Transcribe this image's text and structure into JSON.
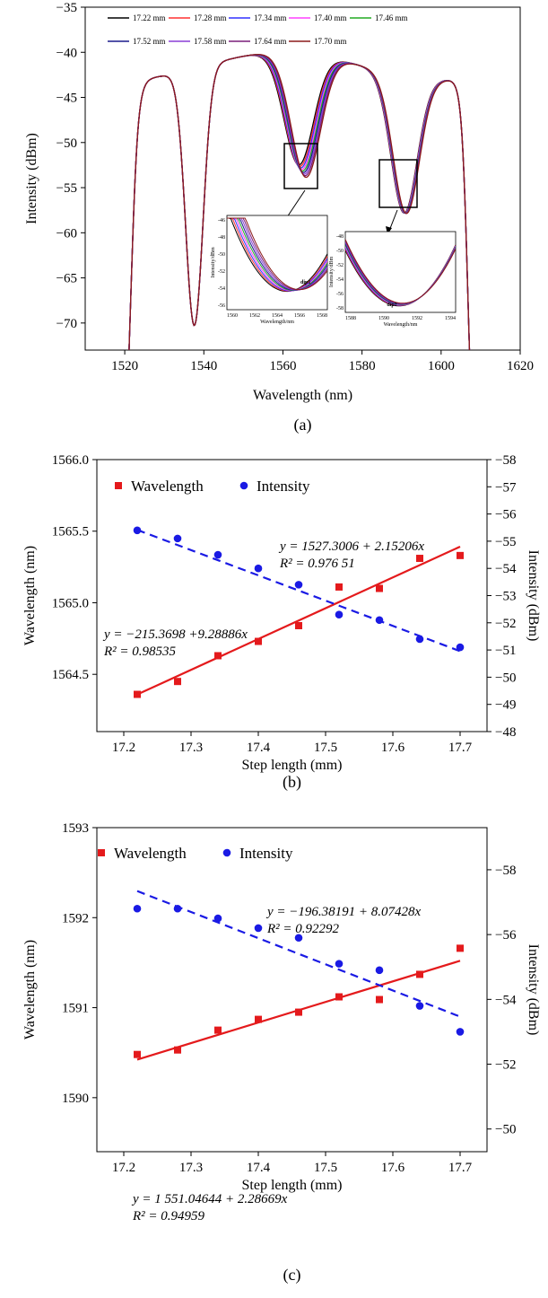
{
  "chart_data": [
    {
      "type": "line",
      "panel_label": "(a)",
      "xlabel": "Wavelength (nm)",
      "ylabel": "Intensity (dBm)",
      "xlim": [
        1510,
        1620
      ],
      "ylim": [
        -73,
        -35
      ],
      "xticks": [
        "1520",
        "1540",
        "1560",
        "1580",
        "1600",
        "1620"
      ],
      "yticks": [
        "−35",
        "−40",
        "−45",
        "−50",
        "−55",
        "−60",
        "−65",
        "−70"
      ],
      "legend_position": "top",
      "series": [
        {
          "name": "17.22 mm",
          "color": "#000000"
        },
        {
          "name": "17.28 mm",
          "color": "#ff3030"
        },
        {
          "name": "17.34 mm",
          "color": "#3030ff"
        },
        {
          "name": "17.40 mm",
          "color": "#ff40ff"
        },
        {
          "name": "17.46 mm",
          "color": "#22aa22"
        },
        {
          "name": "17.52 mm",
          "color": "#1a1a8c"
        },
        {
          "name": "17.58 mm",
          "color": "#8a3fd6"
        },
        {
          "name": "17.64 mm",
          "color": "#7a1f7a"
        },
        {
          "name": "17.70 mm",
          "color": "#8b1a1a"
        }
      ],
      "insets": [
        {
          "label": "dip1",
          "xlabel": "Wavelength/nm",
          "ylabel": "Intensity/dBm",
          "xticks": [
            "1560",
            "1562",
            "1564",
            "1566",
            "1568"
          ],
          "yticks": [
            "-46",
            "-48",
            "-50",
            "-52",
            "-54",
            "-56"
          ]
        },
        {
          "label": "dip2",
          "xlabel": "Wavelength/nm",
          "ylabel": "Intensity/dBm",
          "xticks": [
            "1588",
            "1590",
            "1592",
            "1594"
          ],
          "yticks": [
            "-48",
            "-50",
            "-52",
            "-54",
            "-56",
            "-58"
          ]
        }
      ]
    },
    {
      "type": "scatter",
      "panel_label": "(b)",
      "xlabel": "Step length (mm)",
      "ylabel": "Wavelength (nm)",
      "y2label": "Intensity (dBm)",
      "xlim": [
        17.16,
        17.74
      ],
      "ylim": [
        1564.1,
        1566.0
      ],
      "y2lim": [
        -48,
        -58
      ],
      "xticks": [
        "17.2",
        "17.3",
        "17.4",
        "17.5",
        "17.6",
        "17.7"
      ],
      "yticks": [
        "1564.5",
        "1565.0",
        "1565.5",
        "1566.0"
      ],
      "y2ticks": [
        "−48",
        "−49",
        "−50",
        "−51",
        "−52",
        "−53",
        "−54",
        "−55",
        "−56",
        "−57",
        "−58"
      ],
      "legend": [
        "Wavelength",
        "Intensity"
      ],
      "x": [
        17.22,
        17.28,
        17.34,
        17.4,
        17.46,
        17.52,
        17.58,
        17.64,
        17.7
      ],
      "series": [
        {
          "name": "Wavelength",
          "axis": "left",
          "color": "#e41a1c",
          "values": [
            1564.36,
            1564.45,
            1564.63,
            1564.73,
            1564.84,
            1565.11,
            1565.1,
            1565.31,
            1565.33
          ],
          "fit": {
            "intercept": 1527.3006,
            "slope": 2.15206,
            "equation": "y = 1527.3006 + 2.15206x",
            "r2": "R² = 0.976 51"
          }
        },
        {
          "name": "Intensity",
          "axis": "right",
          "color": "#1a1ae4",
          "values": [
            -55.4,
            -55.1,
            -54.5,
            -54.0,
            -53.4,
            -52.3,
            -52.1,
            -51.4,
            -51.1
          ],
          "fit": {
            "intercept": -215.3698,
            "slope": 9.28886,
            "equation": "y = −215.3698 +9.28886x",
            "r2": "R² = 0.98535"
          }
        }
      ]
    },
    {
      "type": "scatter",
      "panel_label": "(c)",
      "xlabel": "Step length (mm)",
      "ylabel": "Wavelength (nm)",
      "y2label": "Intensity (dBm)",
      "xlim": [
        17.16,
        17.74
      ],
      "ylim": [
        1589.4,
        1593.0
      ],
      "y2lim": [
        -49.3,
        -59.3
      ],
      "xticks": [
        "17.2",
        "17.3",
        "17.4",
        "17.5",
        "17.6",
        "17.7"
      ],
      "yticks": [
        "1590",
        "1591",
        "1592",
        "1593"
      ],
      "y2ticks": [
        "−50",
        "−52",
        "−54",
        "−56",
        "−58"
      ],
      "legend": [
        "Wavelength",
        "Intensity"
      ],
      "x": [
        17.22,
        17.28,
        17.34,
        17.4,
        17.46,
        17.52,
        17.58,
        17.64,
        17.7
      ],
      "series": [
        {
          "name": "Wavelength",
          "axis": "left",
          "color": "#e41a1c",
          "values": [
            1590.48,
            1590.53,
            1590.75,
            1590.87,
            1590.95,
            1591.12,
            1591.09,
            1591.37,
            1591.66
          ],
          "fit": {
            "intercept": 1551.04644,
            "slope": 2.28669,
            "equation": "y = 1 551.04644 + 2.28669x",
            "r2": "R² = 0.94959"
          }
        },
        {
          "name": "Intensity",
          "axis": "right",
          "color": "#1a1ae4",
          "values": [
            -56.8,
            -56.8,
            -56.5,
            -56.2,
            -55.9,
            -55.1,
            -54.9,
            -53.8,
            -53.0
          ],
          "fit": {
            "intercept": -196.38191,
            "slope": 8.07428,
            "equation": "y = −196.38191 + 8.07428x",
            "r2": "R² = 0.92292"
          }
        }
      ]
    }
  ]
}
